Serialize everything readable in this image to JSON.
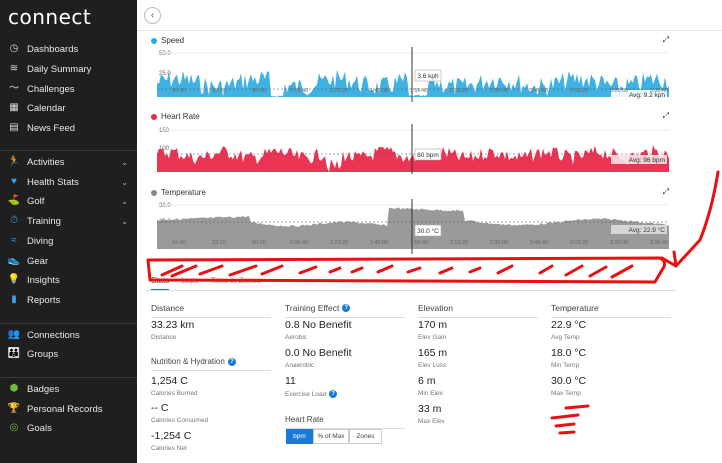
{
  "app": {
    "logo": "connect"
  },
  "sidebar": {
    "items": [
      {
        "label": "Dashboards",
        "icon": "dashboard-icon",
        "chev": false
      },
      {
        "label": "Daily Summary",
        "icon": "layers-icon",
        "chev": false
      },
      {
        "label": "Challenges",
        "icon": "challenges-icon",
        "chev": false
      },
      {
        "label": "Calendar",
        "icon": "calendar-icon",
        "chev": false
      },
      {
        "label": "News Feed",
        "icon": "news-icon",
        "chev": false
      },
      {
        "label": "Activities",
        "icon": "runner-icon",
        "chev": true
      },
      {
        "label": "Health Stats",
        "icon": "heart-icon",
        "chev": true
      },
      {
        "label": "Golf",
        "icon": "golf-icon",
        "chev": true
      },
      {
        "label": "Training",
        "icon": "stopwatch-icon",
        "chev": true
      },
      {
        "label": "Diving",
        "icon": "diving-icon",
        "chev": false
      },
      {
        "label": "Gear",
        "icon": "shoe-icon",
        "chev": false
      },
      {
        "label": "Insights",
        "icon": "lightbulb-icon",
        "chev": false
      },
      {
        "label": "Reports",
        "icon": "reports-icon",
        "chev": false
      },
      {
        "label": "Connections",
        "icon": "connections-icon",
        "chev": false
      },
      {
        "label": "Groups",
        "icon": "groups-icon",
        "chev": false
      },
      {
        "label": "Badges",
        "icon": "badge-icon",
        "chev": false
      },
      {
        "label": "Personal Records",
        "icon": "trophy-icon",
        "chev": false
      },
      {
        "label": "Goals",
        "icon": "goals-icon",
        "chev": false
      }
    ]
  },
  "charts": {
    "speed": {
      "title": "Speed",
      "color": "#2aa8e0",
      "ymax": "50.0",
      "ymid": "25.0",
      "cursor": "3.6 kph",
      "avg": "Avg: 9.2 kph",
      "ticks": [
        "16:40",
        "33:20",
        "50:00",
        "1:06:40",
        "1:23:20",
        "1:40:00",
        "1:56:40",
        "2:13:20",
        "2:30:00",
        "2:46:40",
        "3:03:20",
        "3:20:00",
        "3:36:40"
      ]
    },
    "heart": {
      "title": "Heart Rate",
      "color": "#e8294a",
      "ymax": "150",
      "ymid": "100",
      "cursor": "80 bpm",
      "avg": "Avg: 96 bpm"
    },
    "temp": {
      "title": "Temperature",
      "color": "#888888",
      "ymax": "30.0",
      "ymid": "20.0",
      "cursor": "30.0 °C",
      "avg": "Avg: 22.9 °C",
      "ticks": [
        "16:40",
        "33:20",
        "50:00",
        "1:06:40",
        "1:23:20",
        "1:40:00",
        "1:56:40",
        "2:13:20",
        "2:30:00",
        "2:46:40",
        "3:03:20",
        "3:20:00",
        "3:36:40"
      ]
    }
  },
  "tabs": [
    "Stats",
    "Laps",
    "Time in Zones"
  ],
  "stats": {
    "distance": {
      "header": "Distance",
      "value": "33.23 km",
      "label": "Distance"
    },
    "nutrition": {
      "header": "Nutrition & Hydration",
      "items": [
        {
          "value": "1,254 C",
          "label": "Calories Burned"
        },
        {
          "value": "-- C",
          "label": "Calories Consumed"
        },
        {
          "value": "-1,254 C",
          "label": "Calories Net"
        }
      ]
    },
    "training": {
      "header": "Training Effect",
      "items": [
        {
          "value": "0.8 No Benefit",
          "label": "Aerobic"
        },
        {
          "value": "0.0 No Benefit",
          "label": "Anaerobic"
        },
        {
          "value": "11",
          "label": "Exercise Load"
        }
      ]
    },
    "heartrate": {
      "header": "Heart Rate",
      "buttons": [
        "bpm",
        "% of Max",
        "Zones"
      ]
    },
    "elevation": {
      "header": "Elevation",
      "items": [
        {
          "value": "170 m",
          "label": "Elev Gain"
        },
        {
          "value": "165 m",
          "label": "Elev Loss"
        },
        {
          "value": "6 m",
          "label": "Min Elev"
        },
        {
          "value": "33 m",
          "label": "Max Elev"
        }
      ]
    },
    "temperature": {
      "header": "Temperature",
      "items": [
        {
          "value": "22.9 °C",
          "label": "Avg Temp"
        },
        {
          "value": "18.0 °C",
          "label": "Min Temp"
        },
        {
          "value": "30.0 °C",
          "label": "Max Temp"
        }
      ]
    }
  }
}
